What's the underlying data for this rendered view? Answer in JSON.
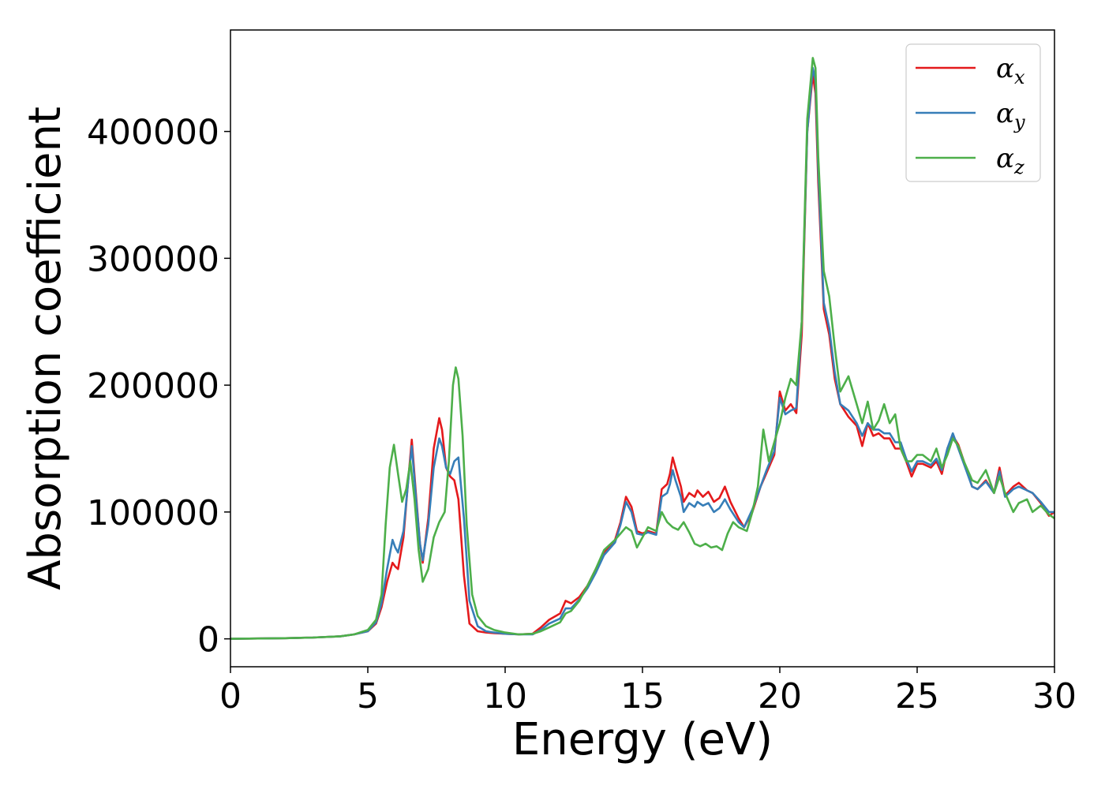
{
  "chart_data": {
    "type": "line",
    "title": "",
    "xlabel": "Energy (eV)",
    "ylabel": "Absorption coefficient",
    "xlim": [
      0,
      30
    ],
    "ylim": [
      -22000,
      480000
    ],
    "xticks": [
      0,
      5,
      10,
      15,
      20,
      25,
      30
    ],
    "xtick_labels": [
      "0",
      "5",
      "10",
      "15",
      "20",
      "25",
      "30"
    ],
    "yticks": [
      0,
      100000,
      200000,
      300000,
      400000
    ],
    "ytick_labels": [
      "0",
      "100000",
      "200000",
      "300000",
      "400000"
    ],
    "grid": false,
    "legend_position": "top-right",
    "series": [
      {
        "name": "αx",
        "symbol": "α",
        "subscript": "x",
        "color": "#e41a1c",
        "x": [
          0,
          2,
          3,
          4,
          4.5,
          5,
          5.3,
          5.5,
          5.7,
          5.9,
          6.0,
          6.1,
          6.3,
          6.45,
          6.6,
          6.75,
          6.9,
          7.0,
          7.2,
          7.4,
          7.6,
          7.7,
          7.85,
          8.0,
          8.15,
          8.3,
          8.5,
          8.7,
          9.0,
          9.3,
          9.6,
          10.0,
          10.5,
          11.0,
          11.3,
          11.6,
          12.0,
          12.2,
          12.4,
          12.7,
          13.0,
          13.3,
          13.6,
          14.0,
          14.2,
          14.4,
          14.6,
          14.8,
          15.0,
          15.2,
          15.5,
          15.7,
          15.9,
          16.0,
          16.1,
          16.2,
          16.4,
          16.5,
          16.7,
          16.9,
          17.0,
          17.2,
          17.4,
          17.6,
          17.8,
          18.0,
          18.2,
          18.5,
          18.7,
          19.0,
          19.3,
          19.5,
          19.8,
          20.0,
          20.2,
          20.4,
          20.6,
          20.8,
          21.0,
          21.2,
          21.3,
          21.4,
          21.6,
          21.8,
          22.0,
          22.2,
          22.5,
          22.8,
          23.0,
          23.2,
          23.4,
          23.6,
          23.8,
          24.0,
          24.2,
          24.4,
          24.6,
          24.8,
          25.0,
          25.2,
          25.5,
          25.7,
          25.9,
          26.1,
          26.3,
          26.5,
          26.7,
          27.0,
          27.2,
          27.5,
          27.8,
          28.0,
          28.2,
          28.5,
          28.7,
          29.0,
          29.2,
          29.5,
          29.8,
          30.0
        ],
        "y": [
          0,
          500,
          1000,
          2000,
          3500,
          6000,
          12000,
          25000,
          45000,
          60000,
          57000,
          55000,
          80000,
          120000,
          157000,
          115000,
          75000,
          60000,
          95000,
          150000,
          174000,
          165000,
          135000,
          128000,
          125000,
          110000,
          50000,
          12000,
          6000,
          5000,
          4500,
          4000,
          3500,
          4000,
          9000,
          15000,
          20000,
          30000,
          28000,
          33000,
          42000,
          55000,
          68000,
          78000,
          92000,
          112000,
          104000,
          85000,
          83000,
          85000,
          83000,
          118000,
          122000,
          130000,
          143000,
          135000,
          120000,
          108000,
          115000,
          112000,
          117000,
          112000,
          116000,
          108000,
          111000,
          120000,
          108000,
          95000,
          88000,
          100000,
          120000,
          130000,
          145000,
          195000,
          180000,
          185000,
          178000,
          240000,
          400000,
          445000,
          430000,
          360000,
          260000,
          240000,
          205000,
          185000,
          175000,
          168000,
          152000,
          170000,
          160000,
          162000,
          158000,
          158000,
          150000,
          150000,
          140000,
          128000,
          138000,
          138000,
          135000,
          140000,
          130000,
          150000,
          160000,
          153000,
          140000,
          120000,
          118000,
          125000,
          115000,
          135000,
          113000,
          120000,
          123000,
          117000,
          115000,
          107000,
          97000,
          100000
        ]
      },
      {
        "name": "αy",
        "symbol": "α",
        "subscript": "y",
        "color": "#377eb8",
        "x": [
          0,
          2,
          3,
          4,
          4.5,
          5,
          5.3,
          5.5,
          5.7,
          5.9,
          6.0,
          6.1,
          6.3,
          6.45,
          6.6,
          6.75,
          6.9,
          7.0,
          7.2,
          7.4,
          7.6,
          7.7,
          7.85,
          8.0,
          8.15,
          8.3,
          8.5,
          8.7,
          9.0,
          9.3,
          9.6,
          10.0,
          10.5,
          11.0,
          11.3,
          11.6,
          12.0,
          12.2,
          12.4,
          12.7,
          13.0,
          13.3,
          13.6,
          14.0,
          14.2,
          14.4,
          14.6,
          14.8,
          15.0,
          15.2,
          15.5,
          15.7,
          15.9,
          16.0,
          16.1,
          16.2,
          16.4,
          16.5,
          16.7,
          16.9,
          17.0,
          17.2,
          17.4,
          17.6,
          17.8,
          18.0,
          18.2,
          18.5,
          18.7,
          19.0,
          19.3,
          19.5,
          19.8,
          20.0,
          20.2,
          20.4,
          20.6,
          20.8,
          21.0,
          21.2,
          21.3,
          21.4,
          21.6,
          21.8,
          22.0,
          22.2,
          22.5,
          22.8,
          23.0,
          23.2,
          23.4,
          23.6,
          23.8,
          24.0,
          24.2,
          24.4,
          24.6,
          24.8,
          25.0,
          25.2,
          25.5,
          25.7,
          25.9,
          26.1,
          26.3,
          26.5,
          26.7,
          27.0,
          27.2,
          27.5,
          27.8,
          28.0,
          28.2,
          28.5,
          28.7,
          29.0,
          29.2,
          29.5,
          29.8,
          30.0
        ],
        "y": [
          0,
          500,
          1000,
          2000,
          3500,
          6000,
          13000,
          28000,
          55000,
          78000,
          72000,
          68000,
          85000,
          120000,
          152000,
          112000,
          75000,
          62000,
          90000,
          135000,
          158000,
          152000,
          135000,
          130000,
          140000,
          143000,
          95000,
          30000,
          10000,
          6000,
          5000,
          4000,
          3500,
          3500,
          7000,
          12000,
          16000,
          24000,
          24000,
          31000,
          40000,
          52000,
          66000,
          76000,
          90000,
          108000,
          100000,
          83000,
          82000,
          84000,
          82000,
          112000,
          115000,
          122000,
          133000,
          125000,
          112000,
          100000,
          107000,
          104000,
          108000,
          105000,
          107000,
          100000,
          103000,
          110000,
          102000,
          92000,
          88000,
          102000,
          120000,
          132000,
          148000,
          190000,
          177000,
          180000,
          182000,
          250000,
          400000,
          450000,
          440000,
          370000,
          265000,
          245000,
          210000,
          185000,
          180000,
          170000,
          160000,
          170000,
          165000,
          165000,
          162000,
          162000,
          155000,
          155000,
          142000,
          132000,
          140000,
          140000,
          137000,
          142000,
          133000,
          150000,
          162000,
          150000,
          138000,
          120000,
          118000,
          124000,
          115000,
          132000,
          112000,
          118000,
          120000,
          117000,
          115000,
          108000,
          100000,
          100000
        ]
      },
      {
        "name": "αz",
        "symbol": "α",
        "subscript": "z",
        "color": "#4daf4a",
        "x": [
          0,
          2,
          3,
          4,
          4.5,
          5,
          5.3,
          5.5,
          5.65,
          5.8,
          5.95,
          6.1,
          6.25,
          6.4,
          6.55,
          6.7,
          6.85,
          7.0,
          7.2,
          7.4,
          7.6,
          7.8,
          7.95,
          8.1,
          8.2,
          8.3,
          8.45,
          8.6,
          8.8,
          9.0,
          9.3,
          9.6,
          10.0,
          10.5,
          11.0,
          11.3,
          11.6,
          12.0,
          12.2,
          12.4,
          12.7,
          13.0,
          13.3,
          13.6,
          14.0,
          14.2,
          14.4,
          14.6,
          14.8,
          15.0,
          15.2,
          15.5,
          15.7,
          15.9,
          16.1,
          16.3,
          16.5,
          16.7,
          16.9,
          17.1,
          17.3,
          17.5,
          17.7,
          17.9,
          18.1,
          18.3,
          18.5,
          18.8,
          19.0,
          19.2,
          19.4,
          19.6,
          19.8,
          20.0,
          20.2,
          20.4,
          20.6,
          20.8,
          21.0,
          21.2,
          21.3,
          21.4,
          21.6,
          21.8,
          22.0,
          22.2,
          22.5,
          22.8,
          23.0,
          23.2,
          23.4,
          23.6,
          23.8,
          24.0,
          24.2,
          24.4,
          24.6,
          24.8,
          25.0,
          25.2,
          25.5,
          25.7,
          25.9,
          26.1,
          26.3,
          26.5,
          26.7,
          27.0,
          27.2,
          27.5,
          27.8,
          28.0,
          28.2,
          28.5,
          28.7,
          29.0,
          29.2,
          29.5,
          29.8,
          30.0
        ],
        "y": [
          0,
          500,
          1000,
          2000,
          3500,
          7000,
          15000,
          35000,
          90000,
          135000,
          153000,
          130000,
          108000,
          118000,
          140000,
          110000,
          70000,
          45000,
          55000,
          80000,
          92000,
          100000,
          140000,
          200000,
          214000,
          205000,
          160000,
          90000,
          35000,
          18000,
          10000,
          7000,
          5000,
          3500,
          4000,
          6000,
          9000,
          13000,
          20000,
          22000,
          30000,
          42000,
          55000,
          70000,
          78000,
          83000,
          88000,
          85000,
          72000,
          80000,
          88000,
          85000,
          100000,
          92000,
          88000,
          86000,
          92000,
          84000,
          75000,
          73000,
          75000,
          72000,
          73000,
          70000,
          83000,
          92000,
          88000,
          85000,
          100000,
          120000,
          165000,
          140000,
          155000,
          170000,
          190000,
          205000,
          200000,
          250000,
          410000,
          458000,
          450000,
          380000,
          290000,
          270000,
          230000,
          195000,
          207000,
          185000,
          170000,
          187000,
          165000,
          172000,
          185000,
          170000,
          177000,
          150000,
          140000,
          140000,
          145000,
          145000,
          140000,
          150000,
          135000,
          145000,
          158000,
          152000,
          140000,
          125000,
          123000,
          133000,
          115000,
          128000,
          115000,
          100000,
          107000,
          110000,
          100000,
          105000,
          98000,
          95000
        ]
      }
    ]
  }
}
